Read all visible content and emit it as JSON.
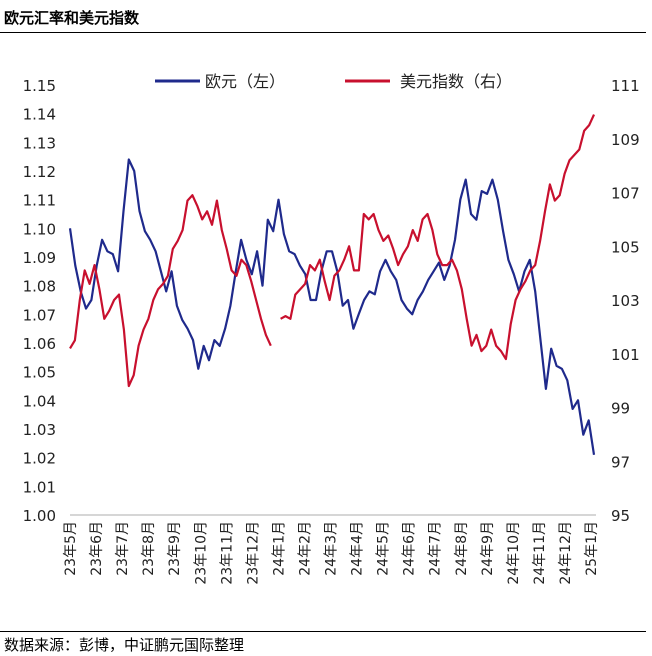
{
  "header": {
    "title": "欧元汇率和美元指数"
  },
  "footer": {
    "source": "数据来源：彭博，中证鹏元国际整理"
  },
  "chart_data": {
    "type": "line",
    "title": "欧元汇率和美元指数",
    "x_start": "23年5月",
    "x_end": "25年1月",
    "x_tick_labels": [
      "23年5月",
      "23年6月",
      "23年7月",
      "23年8月",
      "23年9月",
      "23年10月",
      "23年11月",
      "23年12月",
      "24年1月",
      "24年2月",
      "24年3月",
      "24年4月",
      "24年5月",
      "24年6月",
      "24年7月",
      "24年8月",
      "24年9月",
      "24年10月",
      "24年11月",
      "24年12月",
      "25年1月"
    ],
    "y_left": {
      "ticks": [
        "1.00",
        "1.01",
        "1.02",
        "1.03",
        "1.04",
        "1.05",
        "1.06",
        "1.07",
        "1.08",
        "1.09",
        "1.10",
        "1.11",
        "1.12",
        "1.13",
        "1.14",
        "1.15"
      ],
      "range": [
        1.0,
        1.15
      ]
    },
    "y_right": {
      "ticks": [
        "95",
        "97",
        "99",
        "101",
        "103",
        "105",
        "107",
        "109",
        "111"
      ],
      "range": [
        95,
        111
      ]
    },
    "grid": false,
    "legend_position": "top",
    "series": [
      {
        "name": "欧元（左）",
        "axis": "left",
        "color": "#1f2a8c",
        "values": [
          1.1,
          1.087,
          1.078,
          1.072,
          1.075,
          1.087,
          1.096,
          1.092,
          1.091,
          1.085,
          1.106,
          1.124,
          1.12,
          1.106,
          1.099,
          1.096,
          1.092,
          1.085,
          1.078,
          1.085,
          1.073,
          1.068,
          1.065,
          1.061,
          1.051,
          1.059,
          1.054,
          1.061,
          1.059,
          1.065,
          1.073,
          1.085,
          1.096,
          1.089,
          1.084,
          1.092,
          1.08,
          1.103,
          1.099,
          1.11,
          1.098,
          1.092,
          1.091,
          1.087,
          1.084,
          1.075,
          1.075,
          1.085,
          1.092,
          1.092,
          1.085,
          1.073,
          1.075,
          1.065,
          1.07,
          1.075,
          1.078,
          1.077,
          1.085,
          1.089,
          1.085,
          1.082,
          1.075,
          1.072,
          1.07,
          1.075,
          1.078,
          1.082,
          1.085,
          1.088,
          1.082,
          1.087,
          1.096,
          1.11,
          1.117,
          1.105,
          1.103,
          1.113,
          1.112,
          1.117,
          1.11,
          1.099,
          1.089,
          1.084,
          1.078,
          1.085,
          1.089,
          1.078,
          1.061,
          1.044,
          1.058,
          1.052,
          1.051,
          1.047,
          1.037,
          1.04,
          1.028,
          1.033,
          1.021
        ]
      },
      {
        "name": "美元指数（右）",
        "axis": "right",
        "color": "#c8102e",
        "values": [
          101.2,
          101.5,
          103.0,
          104.1,
          103.6,
          104.3,
          103.4,
          102.3,
          102.6,
          103.0,
          103.2,
          101.9,
          99.8,
          100.2,
          101.3,
          101.9,
          102.3,
          103.0,
          103.4,
          103.6,
          103.9,
          104.9,
          105.2,
          105.6,
          106.7,
          106.9,
          106.5,
          106.0,
          106.3,
          105.8,
          106.7,
          105.6,
          104.9,
          104.1,
          103.9,
          104.5,
          104.3,
          103.7,
          103.0,
          102.3,
          101.7,
          101.3,
          null,
          102.3,
          102.4,
          102.3,
          103.2,
          103.4,
          103.6,
          104.3,
          104.1,
          104.5,
          103.7,
          103.0,
          103.9,
          104.1,
          104.5,
          105.0,
          104.1,
          104.1,
          106.2,
          106.0,
          106.2,
          105.6,
          105.2,
          105.4,
          104.9,
          104.3,
          104.7,
          105.0,
          105.6,
          105.2,
          106.0,
          106.2,
          105.6,
          104.7,
          104.3,
          104.3,
          104.5,
          104.1,
          103.4,
          102.3,
          101.3,
          101.7,
          101.1,
          101.3,
          101.9,
          101.3,
          101.1,
          100.8,
          102.1,
          103.0,
          103.4,
          103.7,
          104.1,
          104.3,
          105.2,
          106.3,
          107.3,
          106.7,
          106.9,
          107.7,
          108.2,
          108.4,
          108.6,
          109.3,
          109.5,
          109.9
        ]
      }
    ]
  }
}
